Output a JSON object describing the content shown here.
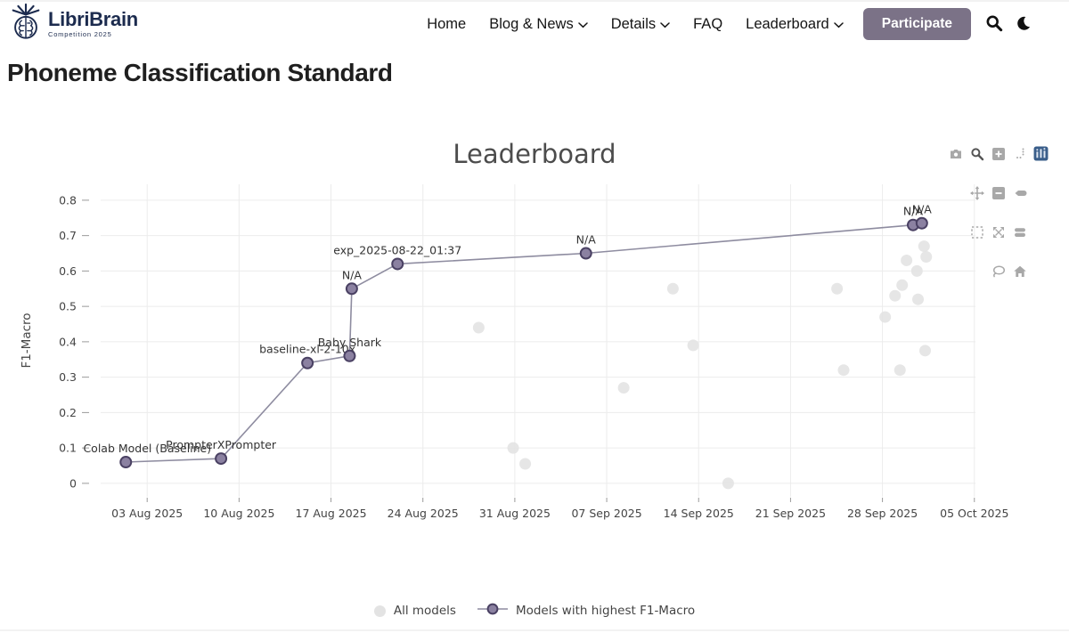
{
  "header": {
    "logo": {
      "title": "LibriBrain",
      "subtitle": "Competition 2025"
    },
    "nav": [
      {
        "label": "Home",
        "dropdown": false
      },
      {
        "label": "Blog & News",
        "dropdown": true
      },
      {
        "label": "Details",
        "dropdown": true
      },
      {
        "label": "FAQ",
        "dropdown": false
      },
      {
        "label": "Leaderboard",
        "dropdown": true
      }
    ],
    "participate_label": "Participate",
    "icons": [
      "search-icon",
      "moon-icon"
    ],
    "colors": {
      "accent": "#7b7287",
      "navy": "#1c2b4e"
    }
  },
  "page": {
    "title": "Phoneme Classification Standard"
  },
  "chart_data": {
    "type": "scatter",
    "title": "Leaderboard",
    "xlabel": "",
    "ylabel": "F1-Macro",
    "grid": true,
    "legend_position": "bottom-center",
    "x_range": [
      "2025-07-30T11:00:00",
      "2025-10-05T02:00:00"
    ],
    "y_range": [
      -0.038,
      0.845
    ],
    "x_ticks": [
      {
        "date": "2025-08-03",
        "label": "03 Aug 2025"
      },
      {
        "date": "2025-08-10",
        "label": "10 Aug 2025"
      },
      {
        "date": "2025-08-17",
        "label": "17 Aug 2025"
      },
      {
        "date": "2025-08-24",
        "label": "24 Aug 2025"
      },
      {
        "date": "2025-08-31",
        "label": "31 Aug 2025"
      },
      {
        "date": "2025-09-07",
        "label": "07 Sep 2025"
      },
      {
        "date": "2025-09-14",
        "label": "14 Sep 2025"
      },
      {
        "date": "2025-09-21",
        "label": "21 Sep 2025"
      },
      {
        "date": "2025-09-28",
        "label": "28 Sep 2025"
      },
      {
        "date": "2025-10-05",
        "label": "05 Oct 2025"
      }
    ],
    "y_ticks": [
      {
        "value": 0,
        "label": "0"
      },
      {
        "value": 0.1,
        "label": "0.1"
      },
      {
        "value": 0.2,
        "label": "0.2"
      },
      {
        "value": 0.3,
        "label": "0.3"
      },
      {
        "value": 0.4,
        "label": "0.4"
      },
      {
        "value": 0.5,
        "label": "0.5"
      },
      {
        "value": 0.6,
        "label": "0.6"
      },
      {
        "value": 0.7,
        "label": "0.7"
      },
      {
        "value": 0.8,
        "label": "0.8"
      }
    ],
    "series": [
      {
        "name": "All models",
        "mode": "markers",
        "color": "#e3e3e3",
        "points": [
          {
            "x": "2025-08-28T06:00",
            "y": 0.44
          },
          {
            "x": "2025-08-30T21:00",
            "y": 0.1
          },
          {
            "x": "2025-08-31T19:00",
            "y": 0.055
          },
          {
            "x": "2025-09-08T07:00",
            "y": 0.27
          },
          {
            "x": "2025-09-12T01:00",
            "y": 0.55
          },
          {
            "x": "2025-09-13T14:00",
            "y": 0.39
          },
          {
            "x": "2025-09-16T06:00",
            "y": 0.0
          },
          {
            "x": "2025-09-24T13:00",
            "y": 0.55
          },
          {
            "x": "2025-09-25T01:00",
            "y": 0.32
          },
          {
            "x": "2025-09-28T05:00",
            "y": 0.47
          },
          {
            "x": "2025-09-28T23:00",
            "y": 0.53
          },
          {
            "x": "2025-09-29T08:00",
            "y": 0.32
          },
          {
            "x": "2025-09-29T12:00",
            "y": 0.56
          },
          {
            "x": "2025-09-29T20:00",
            "y": 0.63
          },
          {
            "x": "2025-09-30T15:00",
            "y": 0.6
          },
          {
            "x": "2025-09-30T17:00",
            "y": 0.52
          },
          {
            "x": "2025-10-01T04:00",
            "y": 0.67
          },
          {
            "x": "2025-10-01T06:00",
            "y": 0.375
          },
          {
            "x": "2025-10-01T08:00",
            "y": 0.64
          }
        ]
      },
      {
        "name": "Models with highest F1-Macro",
        "mode": "lines+markers+text",
        "color": "#8b81a1",
        "line_color": "#8e8ca0",
        "marker_outline": "#4a4163",
        "points": [
          {
            "x": "2025-08-01T09:00",
            "y": 0.06,
            "label": "Colab Model (Baseline)"
          },
          {
            "x": "2025-08-08T15:00",
            "y": 0.07,
            "label": "PrompterXPrompter"
          },
          {
            "x": "2025-08-15T05:00",
            "y": 0.34,
            "label": "baseline-xl-2-10x"
          },
          {
            "x": "2025-08-18T10:00",
            "y": 0.36,
            "label": "Baby Shark"
          },
          {
            "x": "2025-08-18T14:00",
            "y": 0.55,
            "label": "N/A"
          },
          {
            "x": "2025-08-22T01:37",
            "y": 0.62,
            "label": "exp_2025-08-22_01:37"
          },
          {
            "x": "2025-09-05T10:00",
            "y": 0.65,
            "label": "N/A"
          },
          {
            "x": "2025-09-30T08:00",
            "y": 0.73,
            "label": "N/A"
          },
          {
            "x": "2025-10-01T00:00",
            "y": 0.735,
            "label": "N/A"
          }
        ]
      }
    ]
  },
  "modebar": {
    "icons": [
      "camera",
      "zoom",
      "zoom-in",
      "spikelines",
      "plotly-logo",
      "pan",
      "zoom-out",
      "hover-closest",
      "box-select",
      "autoscale",
      "hover-compare",
      "lasso",
      "home"
    ]
  }
}
